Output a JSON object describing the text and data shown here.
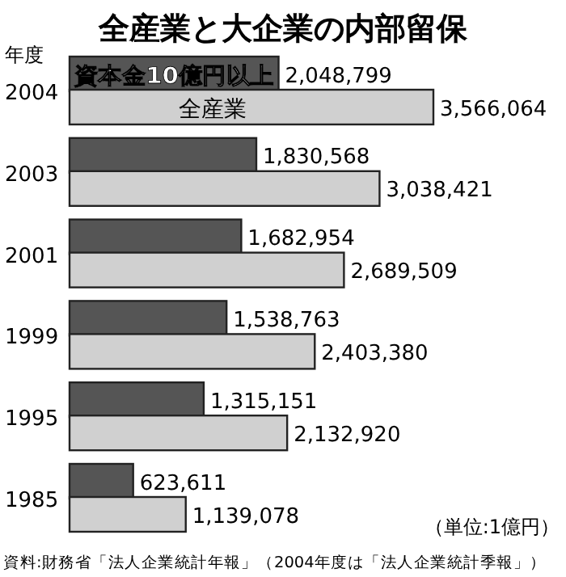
{
  "chart_data": {
    "type": "bar",
    "orientation": "horizontal",
    "relative": false,
    "title": "全産業と大企業の内部留保",
    "ylabel": "年度",
    "categories": [
      "2004",
      "2003",
      "2001",
      "1999",
      "1995",
      "1985"
    ],
    "series": [
      {
        "name": "資本金10億円以上",
        "color": "#555555",
        "values": [
          2048799,
          1830568,
          1682954,
          1538763,
          1315151,
          623611
        ],
        "value_labels": [
          "2,048,799",
          "1,830,568",
          "1,682,954",
          "1,538,763",
          "1,315,151",
          "623,611"
        ]
      },
      {
        "name": "全産業",
        "color": "#d0d0d0",
        "values": [
          3566064,
          3038421,
          2689509,
          2403380,
          2132920,
          1139078
        ],
        "value_labels": [
          "3,566,064",
          "3,038,421",
          "2,689,509",
          "2,403,380",
          "2,132,920",
          "1,139,078"
        ]
      }
    ],
    "annotations": [
      "（単位:1億円）",
      "資料:財務省「法人企業統計年報」（2004年度は「法人企業統計季報」）"
    ]
  }
}
